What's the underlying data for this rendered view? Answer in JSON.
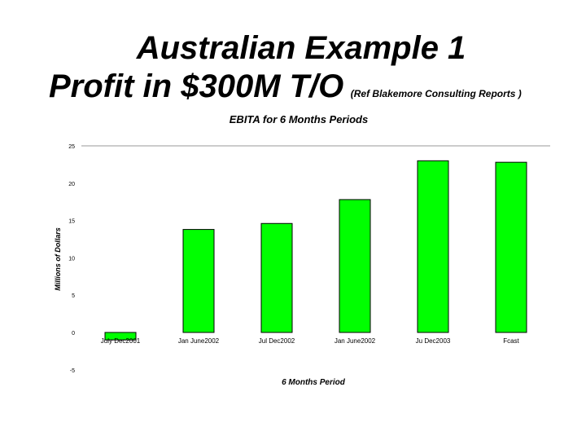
{
  "slide": {
    "title_line1": "Australian Example 1",
    "title_line2": "Profit in $300M T/O",
    "reference": "(Ref Blakemore Consulting Reports )"
  },
  "chart_data": {
    "type": "bar",
    "title": "EBITA  for  6  Months Periods",
    "xlabel": "6 Months Period",
    "ylabel": "Millions of Dollars",
    "categories": [
      "July Dec2001",
      "Jan June2002",
      "Jul Dec2002",
      "Jan June2002",
      "Ju Dec2003",
      "Fcast"
    ],
    "values": [
      -1,
      13.8,
      14.6,
      17.8,
      23.0,
      22.8
    ],
    "ylim": [
      -5,
      25
    ],
    "yticks": [
      -5,
      0,
      5,
      10,
      15,
      20,
      25
    ],
    "bar_color": "#00ff00",
    "grid": "top-line-only",
    "legend": "none"
  }
}
